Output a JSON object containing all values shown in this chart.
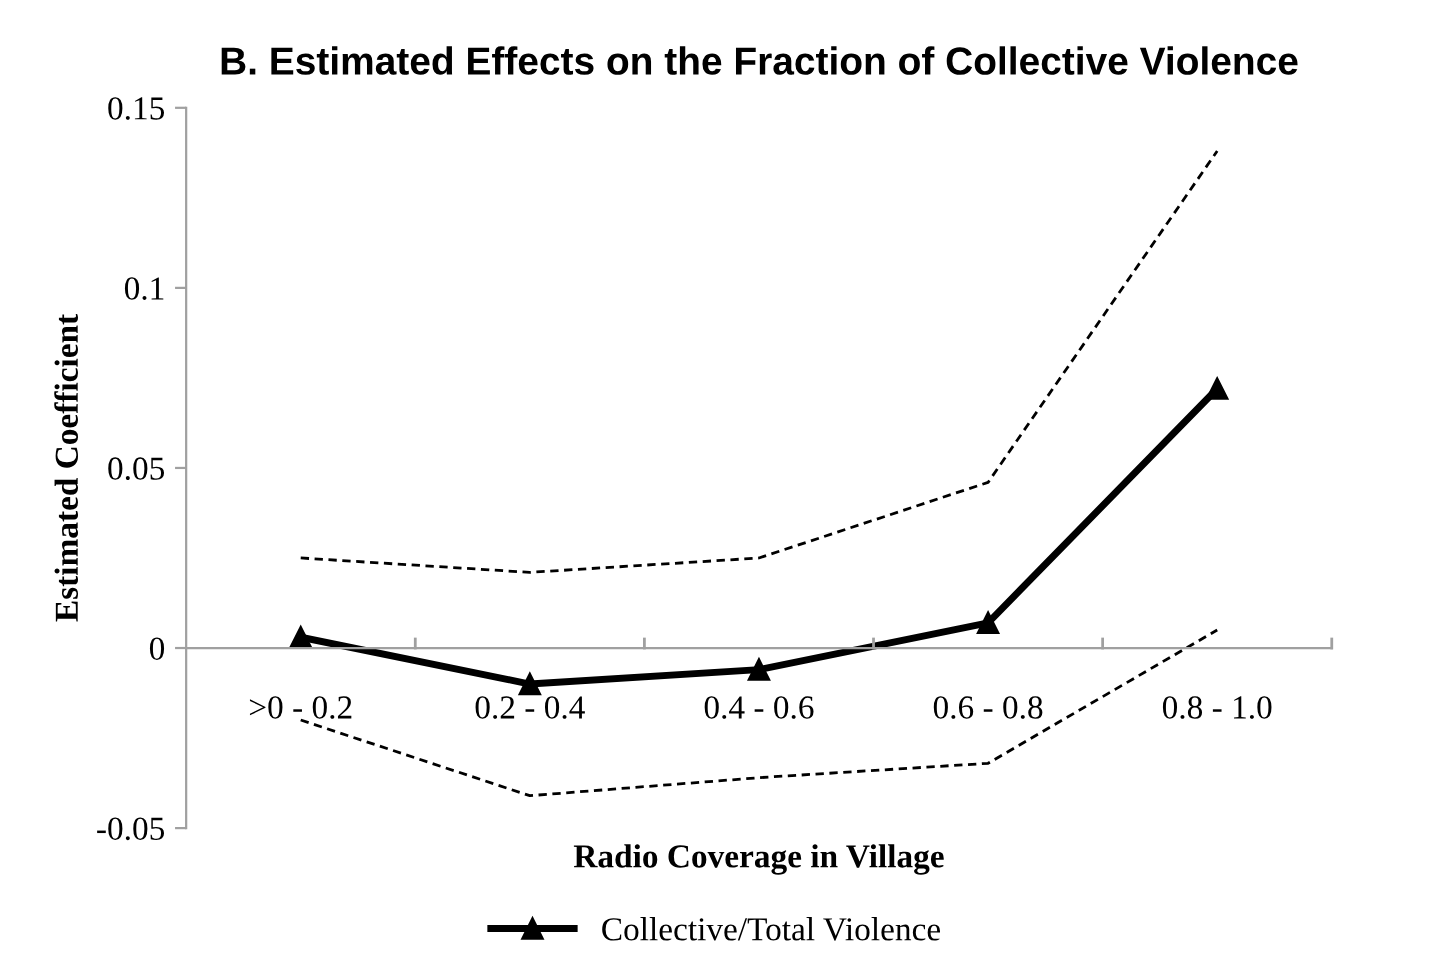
{
  "chart_data": {
    "type": "line",
    "title": "B. Estimated Effects on the Fraction of Collective Violence",
    "xlabel": "Radio Coverage in Village",
    "ylabel": "Estimated Coefficient",
    "categories": [
      ">0 - 0.2",
      "0.2 - 0.4",
      "0.4 - 0.6",
      "0.6 - 0.8",
      "0.8 - 1.0"
    ],
    "series": [
      {
        "name": "Collective/Total Violence",
        "color": "#000000",
        "values": [
          0.003,
          -0.01,
          -0.006,
          0.007,
          0.072
        ],
        "marker": "triangle",
        "line_style": "solid"
      },
      {
        "color": "#000000",
        "values": [
          0.025,
          0.021,
          0.025,
          0.046,
          0.138
        ],
        "marker": "none",
        "line_style": "dashed"
      },
      {
        "color": "#000000",
        "values": [
          -0.02,
          -0.041,
          -0.036,
          -0.032,
          0.005
        ],
        "marker": "none",
        "line_style": "dashed"
      }
    ],
    "ylim": [
      -0.05,
      0.15
    ],
    "yticks": [
      {
        "value": -0.05,
        "label": "-0.05"
      },
      0,
      0.05,
      0.1,
      0.15
    ],
    "grid": false,
    "legend": "bottom"
  }
}
